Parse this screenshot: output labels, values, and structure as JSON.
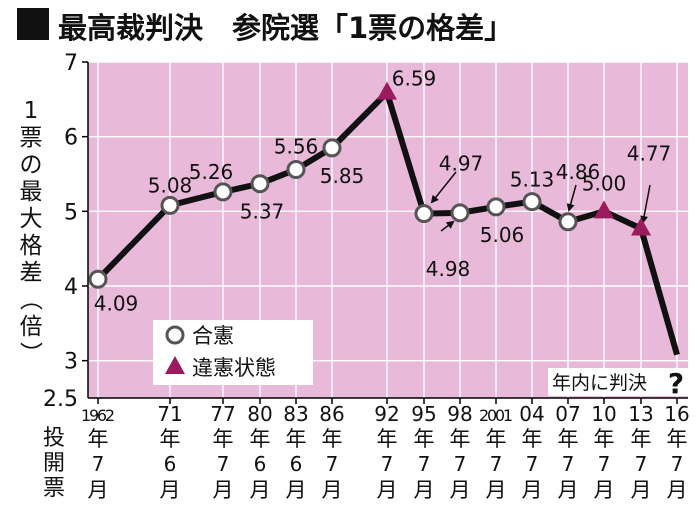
{
  "colors": {
    "background": "#ffffff",
    "plot_bg": "#e9b9d9",
    "line": "#111111",
    "legal_marker_fill": "#ffffff",
    "legal_marker_stroke": "#555555",
    "violation_marker": "#9b1c5e",
    "text": "#111111"
  },
  "chart_data": {
    "type": "line",
    "title": "最高裁判決　参院選「1票の格差」",
    "ylabel": "1票の最大格差（倍）",
    "xlabel": "投開票",
    "ylim": [
      2.5,
      7
    ],
    "yticks": [
      "7",
      "6",
      "5",
      "4",
      "3",
      "2.5"
    ],
    "legend": {
      "placement": "bottom-left",
      "items": [
        {
          "label": "合憲",
          "marker": "open-circle"
        },
        {
          "label": "違憲状態",
          "marker": "triangle"
        }
      ]
    },
    "points": [
      {
        "year": "1962",
        "month": "7",
        "value": 4.09,
        "label": "4.09",
        "status": "合憲"
      },
      {
        "year": "71",
        "month": "6",
        "value": 5.08,
        "label": "5.08",
        "status": "合憲"
      },
      {
        "year": "77",
        "month": "7",
        "value": 5.26,
        "label": "5.26",
        "status": "合憲"
      },
      {
        "year": "80",
        "month": "6",
        "value": 5.37,
        "label": "5.37",
        "status": "合憲"
      },
      {
        "year": "83",
        "month": "6",
        "value": 5.56,
        "label": "5.56",
        "status": "合憲"
      },
      {
        "year": "86",
        "month": "7",
        "value": 5.85,
        "label": "5.85",
        "status": "合憲"
      },
      {
        "year": "92",
        "month": "7",
        "value": 6.59,
        "label": "6.59",
        "status": "違憲状態"
      },
      {
        "year": "95",
        "month": "7",
        "value": 4.97,
        "label": "4.97",
        "status": "合憲"
      },
      {
        "year": "98",
        "month": "7",
        "value": 4.98,
        "label": "4.98",
        "status": "合憲"
      },
      {
        "year": "2001",
        "month": "7",
        "value": 5.06,
        "label": "5.06",
        "status": "合憲"
      },
      {
        "year": "04",
        "month": "7",
        "value": 5.13,
        "label": "5.13",
        "status": "合憲"
      },
      {
        "year": "07",
        "month": "7",
        "value": 4.86,
        "label": "4.86",
        "status": "合憲"
      },
      {
        "year": "10",
        "month": "7",
        "value": 5.0,
        "label": "5.00",
        "status": "違憲状態"
      },
      {
        "year": "13",
        "month": "7",
        "value": 4.77,
        "label": "4.77",
        "status": "違憲状態"
      },
      {
        "year": "16",
        "month": "7",
        "value": 3.08,
        "label": "",
        "status": "判決待ち"
      }
    ],
    "month_suffix": "月",
    "year_suffix": "年",
    "pending_annotation": "年内に判決",
    "pending_mark": "?"
  }
}
